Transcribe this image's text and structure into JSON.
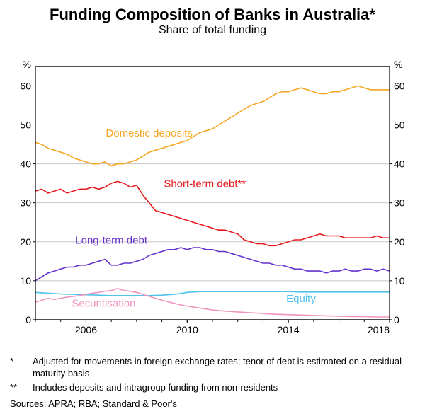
{
  "title": "Funding Composition of Banks in Australia*",
  "subtitle": "Share of total funding",
  "chart": {
    "type": "line",
    "background_color": "#ffffff",
    "border_color": "#000000",
    "gridline_color": "#c8c8c8",
    "axis_color": "#000000",
    "y_unit_left": "%",
    "y_unit_right": "%",
    "ylim": [
      0,
      65
    ],
    "yticks": [
      0,
      10,
      20,
      30,
      40,
      50,
      60
    ],
    "x_range": [
      2004,
      2018
    ],
    "x_ticks": [
      2006,
      2010,
      2014,
      2018
    ],
    "line_width": 1.6,
    "title_fontsize": 22,
    "label_fontsize": 15,
    "axis_fontsize": 14,
    "series": {
      "domestic_deposits": {
        "label": "Domestic deposits",
        "color": "#f5a623",
        "label_pos": {
          "x": 2008.5,
          "y": 47
        },
        "data": [
          [
            2004.0,
            45.5
          ],
          [
            2004.25,
            45
          ],
          [
            2004.5,
            44
          ],
          [
            2004.75,
            43.5
          ],
          [
            2005.0,
            43
          ],
          [
            2005.25,
            42.5
          ],
          [
            2005.5,
            41.5
          ],
          [
            2005.75,
            41
          ],
          [
            2006.0,
            40.5
          ],
          [
            2006.25,
            40
          ],
          [
            2006.5,
            40
          ],
          [
            2006.75,
            40.5
          ],
          [
            2007.0,
            39.5
          ],
          [
            2007.25,
            40
          ],
          [
            2007.5,
            40
          ],
          [
            2007.75,
            40.5
          ],
          [
            2008.0,
            41
          ],
          [
            2008.25,
            42
          ],
          [
            2008.5,
            43
          ],
          [
            2008.75,
            43.5
          ],
          [
            2009.0,
            44
          ],
          [
            2009.25,
            44.5
          ],
          [
            2009.5,
            45
          ],
          [
            2009.75,
            45.5
          ],
          [
            2010.0,
            46
          ],
          [
            2010.25,
            47
          ],
          [
            2010.5,
            48
          ],
          [
            2010.75,
            48.5
          ],
          [
            2011.0,
            49
          ],
          [
            2011.25,
            50
          ],
          [
            2011.5,
            51
          ],
          [
            2011.75,
            52
          ],
          [
            2012.0,
            53
          ],
          [
            2012.25,
            54
          ],
          [
            2012.5,
            55
          ],
          [
            2012.75,
            55.5
          ],
          [
            2013.0,
            56
          ],
          [
            2013.25,
            57
          ],
          [
            2013.5,
            58
          ],
          [
            2013.75,
            58.5
          ],
          [
            2014.0,
            58.5
          ],
          [
            2014.25,
            59
          ],
          [
            2014.5,
            59.5
          ],
          [
            2014.75,
            59
          ],
          [
            2015.0,
            58.5
          ],
          [
            2015.25,
            58
          ],
          [
            2015.5,
            58
          ],
          [
            2015.75,
            58.5
          ],
          [
            2016.0,
            58.5
          ],
          [
            2016.25,
            59
          ],
          [
            2016.5,
            59.5
          ],
          [
            2016.75,
            60
          ],
          [
            2017.0,
            59.5
          ],
          [
            2017.25,
            59
          ],
          [
            2017.5,
            59
          ],
          [
            2017.75,
            59
          ],
          [
            2018.0,
            59
          ]
        ]
      },
      "short_term_debt": {
        "label": "Short-term debt**",
        "color": "#e6191e",
        "label_pos": {
          "x": 2010.7,
          "y": 34
        },
        "data": [
          [
            2004.0,
            33
          ],
          [
            2004.25,
            33.5
          ],
          [
            2004.5,
            32.5
          ],
          [
            2004.75,
            33
          ],
          [
            2005.0,
            33.5
          ],
          [
            2005.25,
            32.5
          ],
          [
            2005.5,
            33
          ],
          [
            2005.75,
            33.5
          ],
          [
            2006.0,
            33.5
          ],
          [
            2006.25,
            34
          ],
          [
            2006.5,
            33.5
          ],
          [
            2006.75,
            34
          ],
          [
            2007.0,
            35
          ],
          [
            2007.25,
            35.5
          ],
          [
            2007.5,
            35
          ],
          [
            2007.75,
            34
          ],
          [
            2008.0,
            34.5
          ],
          [
            2008.25,
            32
          ],
          [
            2008.5,
            30
          ],
          [
            2008.75,
            28
          ],
          [
            2009.0,
            27.5
          ],
          [
            2009.25,
            27
          ],
          [
            2009.5,
            26.5
          ],
          [
            2009.75,
            26
          ],
          [
            2010.0,
            25.5
          ],
          [
            2010.25,
            25
          ],
          [
            2010.5,
            24.5
          ],
          [
            2010.75,
            24
          ],
          [
            2011.0,
            23.5
          ],
          [
            2011.25,
            23
          ],
          [
            2011.5,
            23
          ],
          [
            2011.75,
            22.5
          ],
          [
            2012.0,
            22
          ],
          [
            2012.25,
            20.5
          ],
          [
            2012.5,
            20
          ],
          [
            2012.75,
            19.5
          ],
          [
            2013.0,
            19.5
          ],
          [
            2013.25,
            19
          ],
          [
            2013.5,
            19
          ],
          [
            2013.75,
            19.5
          ],
          [
            2014.0,
            20
          ],
          [
            2014.25,
            20.5
          ],
          [
            2014.5,
            20.5
          ],
          [
            2014.75,
            21
          ],
          [
            2015.0,
            21.5
          ],
          [
            2015.25,
            22
          ],
          [
            2015.5,
            21.5
          ],
          [
            2015.75,
            21.5
          ],
          [
            2016.0,
            21.5
          ],
          [
            2016.25,
            21
          ],
          [
            2016.5,
            21
          ],
          [
            2016.75,
            21
          ],
          [
            2017.0,
            21
          ],
          [
            2017.25,
            21
          ],
          [
            2017.5,
            21.5
          ],
          [
            2017.75,
            21
          ],
          [
            2018.0,
            21
          ]
        ]
      },
      "long_term_debt": {
        "label": "Long-term debt",
        "color": "#6633cc",
        "label_pos": {
          "x": 2007.0,
          "y": 19.5
        },
        "data": [
          [
            2004.0,
            10
          ],
          [
            2004.25,
            11
          ],
          [
            2004.5,
            12
          ],
          [
            2004.75,
            12.5
          ],
          [
            2005.0,
            13
          ],
          [
            2005.25,
            13.5
          ],
          [
            2005.5,
            13.5
          ],
          [
            2005.75,
            14
          ],
          [
            2006.0,
            14
          ],
          [
            2006.25,
            14.5
          ],
          [
            2006.5,
            15
          ],
          [
            2006.75,
            15.5
          ],
          [
            2007.0,
            14
          ],
          [
            2007.25,
            14
          ],
          [
            2007.5,
            14.5
          ],
          [
            2007.75,
            14.5
          ],
          [
            2008.0,
            15
          ],
          [
            2008.25,
            15.5
          ],
          [
            2008.5,
            16.5
          ],
          [
            2008.75,
            17
          ],
          [
            2009.0,
            17.5
          ],
          [
            2009.25,
            18
          ],
          [
            2009.5,
            18
          ],
          [
            2009.75,
            18.5
          ],
          [
            2010.0,
            18
          ],
          [
            2010.25,
            18.5
          ],
          [
            2010.5,
            18.5
          ],
          [
            2010.75,
            18
          ],
          [
            2011.0,
            18
          ],
          [
            2011.25,
            17.5
          ],
          [
            2011.5,
            17.5
          ],
          [
            2011.75,
            17
          ],
          [
            2012.0,
            16.5
          ],
          [
            2012.25,
            16
          ],
          [
            2012.5,
            15.5
          ],
          [
            2012.75,
            15
          ],
          [
            2013.0,
            14.5
          ],
          [
            2013.25,
            14.5
          ],
          [
            2013.5,
            14
          ],
          [
            2013.75,
            14
          ],
          [
            2014.0,
            13.5
          ],
          [
            2014.25,
            13
          ],
          [
            2014.5,
            13
          ],
          [
            2014.75,
            12.5
          ],
          [
            2015.0,
            12.5
          ],
          [
            2015.25,
            12.5
          ],
          [
            2015.5,
            12
          ],
          [
            2015.75,
            12.5
          ],
          [
            2016.0,
            12.5
          ],
          [
            2016.25,
            13
          ],
          [
            2016.5,
            12.5
          ],
          [
            2016.75,
            12.5
          ],
          [
            2017.0,
            13
          ],
          [
            2017.25,
            13
          ],
          [
            2017.5,
            12.5
          ],
          [
            2017.75,
            13
          ],
          [
            2018.0,
            12.5
          ]
        ]
      },
      "equity": {
        "label": "Equity",
        "color": "#4fc3e8",
        "label_pos": {
          "x": 2014.5,
          "y": 4.5
        },
        "data": [
          [
            2004.0,
            7
          ],
          [
            2004.5,
            6.8
          ],
          [
            2005.0,
            6.6
          ],
          [
            2005.5,
            6.5
          ],
          [
            2006.0,
            6.4
          ],
          [
            2006.5,
            6.3
          ],
          [
            2007.0,
            6.2
          ],
          [
            2007.5,
            6.2
          ],
          [
            2008.0,
            6.2
          ],
          [
            2008.5,
            6.2
          ],
          [
            2009.0,
            6.3
          ],
          [
            2009.5,
            6.5
          ],
          [
            2010.0,
            7
          ],
          [
            2010.5,
            7.2
          ],
          [
            2011.0,
            7.2
          ],
          [
            2011.5,
            7.2
          ],
          [
            2012.0,
            7.2
          ],
          [
            2012.5,
            7.2
          ],
          [
            2013.0,
            7.2
          ],
          [
            2013.5,
            7.2
          ],
          [
            2014.0,
            7.2
          ],
          [
            2014.5,
            7.1
          ],
          [
            2015.0,
            7.1
          ],
          [
            2015.5,
            7.1
          ],
          [
            2016.0,
            7.1
          ],
          [
            2016.5,
            7.1
          ],
          [
            2017.0,
            7.1
          ],
          [
            2017.5,
            7.1
          ],
          [
            2018.0,
            7.1
          ]
        ]
      },
      "securitisation": {
        "label": "Securitisation",
        "color": "#f095c0",
        "label_pos": {
          "x": 2006.7,
          "y": 3.3
        },
        "data": [
          [
            2004.0,
            4.5
          ],
          [
            2004.25,
            5
          ],
          [
            2004.5,
            5.5
          ],
          [
            2004.75,
            5.2
          ],
          [
            2005.0,
            5.5
          ],
          [
            2005.25,
            5.8
          ],
          [
            2005.5,
            6
          ],
          [
            2005.75,
            6.2
          ],
          [
            2006.0,
            6.5
          ],
          [
            2006.25,
            6.8
          ],
          [
            2006.5,
            7
          ],
          [
            2006.75,
            7.3
          ],
          [
            2007.0,
            7.5
          ],
          [
            2007.25,
            8
          ],
          [
            2007.5,
            7.5
          ],
          [
            2007.75,
            7.3
          ],
          [
            2008.0,
            7
          ],
          [
            2008.25,
            6.5
          ],
          [
            2008.5,
            6
          ],
          [
            2008.75,
            5.5
          ],
          [
            2009.0,
            5
          ],
          [
            2009.25,
            4.6
          ],
          [
            2009.5,
            4.2
          ],
          [
            2009.75,
            3.8
          ],
          [
            2010.0,
            3.5
          ],
          [
            2010.5,
            3
          ],
          [
            2011.0,
            2.5
          ],
          [
            2011.5,
            2.2
          ],
          [
            2012.0,
            2
          ],
          [
            2012.5,
            1.8
          ],
          [
            2013.0,
            1.6
          ],
          [
            2013.5,
            1.4
          ],
          [
            2014.0,
            1.3
          ],
          [
            2014.5,
            1.2
          ],
          [
            2015.0,
            1.1
          ],
          [
            2015.5,
            1
          ],
          [
            2016.0,
            0.9
          ],
          [
            2016.5,
            0.8
          ],
          [
            2017.0,
            0.8
          ],
          [
            2017.5,
            0.7
          ],
          [
            2018.0,
            0.7
          ]
        ]
      }
    }
  },
  "footnotes": [
    {
      "mark": "*",
      "text": "Adjusted for movements in foreign exchange rates; tenor of debt is estimated on a residual maturity basis"
    },
    {
      "mark": "**",
      "text": "Includes deposits and intragroup funding from non-residents"
    }
  ],
  "sources": "Sources: APRA; RBA; Standard & Poor's"
}
